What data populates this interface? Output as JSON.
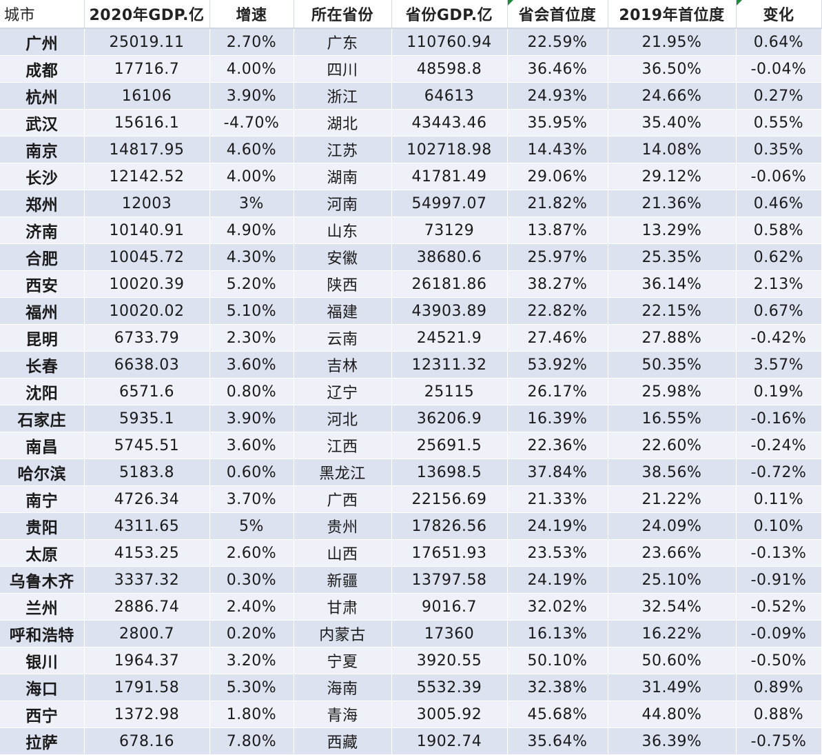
{
  "table": {
    "headers": [
      "城市",
      "2020年GDP.亿",
      "增速",
      "所在省份",
      "省份GDP.亿",
      "省会首位度",
      "2019年首位度",
      "变化"
    ],
    "rows": [
      [
        "广州",
        "25019.11",
        "2.70%",
        "广东",
        "110760.94",
        "22.59%",
        "21.95%",
        "0.64%"
      ],
      [
        "成都",
        "17716.7",
        "4.00%",
        "四川",
        "48598.8",
        "36.46%",
        "36.50%",
        "-0.04%"
      ],
      [
        "杭州",
        "16106",
        "3.90%",
        "浙江",
        "64613",
        "24.93%",
        "24.66%",
        "0.27%"
      ],
      [
        "武汉",
        "15616.1",
        "-4.70%",
        "湖北",
        "43443.46",
        "35.95%",
        "35.40%",
        "0.55%"
      ],
      [
        "南京",
        "14817.95",
        "4.60%",
        "江苏",
        "102718.98",
        "14.43%",
        "14.08%",
        "0.35%"
      ],
      [
        "长沙",
        "12142.52",
        "4.00%",
        "湖南",
        "41781.49",
        "29.06%",
        "29.12%",
        "-0.06%"
      ],
      [
        "郑州",
        "12003",
        "3%",
        "河南",
        "54997.07",
        "21.82%",
        "21.36%",
        "0.46%"
      ],
      [
        "济南",
        "10140.91",
        "4.90%",
        "山东",
        "73129",
        "13.87%",
        "13.29%",
        "0.58%"
      ],
      [
        "合肥",
        "10045.72",
        "4.30%",
        "安徽",
        "38680.6",
        "25.97%",
        "25.35%",
        "0.62%"
      ],
      [
        "西安",
        "10020.39",
        "5.20%",
        "陕西",
        "26181.86",
        "38.27%",
        "36.14%",
        "2.13%"
      ],
      [
        "福州",
        "10020.02",
        "5.10%",
        "福建",
        "43903.89",
        "22.82%",
        "22.15%",
        "0.67%"
      ],
      [
        "昆明",
        "6733.79",
        "2.30%",
        "云南",
        "24521.9",
        "27.46%",
        "27.88%",
        "-0.42%"
      ],
      [
        "长春",
        "6638.03",
        "3.60%",
        "吉林",
        "12311.32",
        "53.92%",
        "50.35%",
        "3.57%"
      ],
      [
        "沈阳",
        "6571.6",
        "0.80%",
        "辽宁",
        "25115",
        "26.17%",
        "25.98%",
        "0.19%"
      ],
      [
        "石家庄",
        "5935.1",
        "3.90%",
        "河北",
        "36206.9",
        "16.39%",
        "16.55%",
        "-0.16%"
      ],
      [
        "南昌",
        "5745.51",
        "3.60%",
        "江西",
        "25691.5",
        "22.36%",
        "22.60%",
        "-0.24%"
      ],
      [
        "哈尔滨",
        "5183.8",
        "0.60%",
        "黑龙江",
        "13698.5",
        "37.84%",
        "38.56%",
        "-0.72%"
      ],
      [
        "南宁",
        "4726.34",
        "3.70%",
        "广西",
        "22156.69",
        "21.33%",
        "21.22%",
        "0.11%"
      ],
      [
        "贵阳",
        "4311.65",
        "5%",
        "贵州",
        "17826.56",
        "24.19%",
        "24.09%",
        "0.10%"
      ],
      [
        "太原",
        "4153.25",
        "2.60%",
        "山西",
        "17651.93",
        "23.53%",
        "23.66%",
        "-0.13%"
      ],
      [
        "乌鲁木齐",
        "3337.32",
        "0.30%",
        "新疆",
        "13797.58",
        "24.19%",
        "25.10%",
        "-0.91%"
      ],
      [
        "兰州",
        "2886.74",
        "2.40%",
        "甘肃",
        "9016.7",
        "32.02%",
        "32.54%",
        "-0.52%"
      ],
      [
        "呼和浩特",
        "2800.7",
        "0.20%",
        "内蒙古",
        "17360",
        "16.13%",
        "16.22%",
        "-0.09%"
      ],
      [
        "银川",
        "1964.37",
        "3.20%",
        "宁夏",
        "3920.55",
        "50.10%",
        "50.60%",
        "-0.50%"
      ],
      [
        "海口",
        "1791.58",
        "5.30%",
        "海南",
        "5532.39",
        "32.38%",
        "31.49%",
        "0.89%"
      ],
      [
        "西宁",
        "1372.98",
        "1.80%",
        "青海",
        "3005.92",
        "45.68%",
        "44.80%",
        "0.88%"
      ],
      [
        "拉萨",
        "678.16",
        "7.80%",
        "西藏",
        "1902.74",
        "35.64%",
        "36.39%",
        "-0.75%"
      ]
    ]
  },
  "colors": {
    "row_odd": "#dce2ef",
    "row_even": "#eef1f8",
    "header_bg": "#ffffff",
    "marker": "#1f8a3a"
  }
}
